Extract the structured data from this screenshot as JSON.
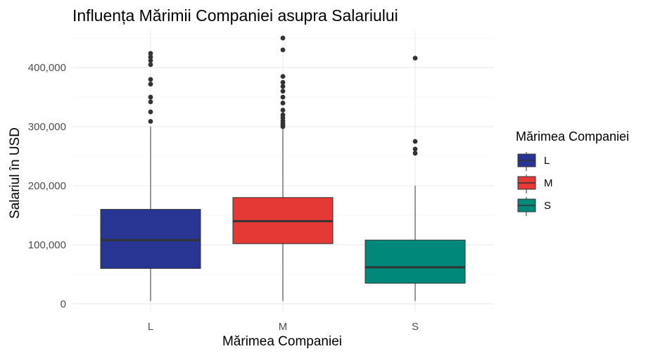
{
  "chart_data": {
    "type": "box",
    "title": "Influența Mărimii Companiei asupra Salariului",
    "xlabel": "Mărimea Companiei",
    "ylabel": "Salariul în USD",
    "ylim": [
      -12000,
      462000
    ],
    "yticks": [
      0,
      100000,
      200000,
      300000,
      400000
    ],
    "ytick_labels": [
      "0",
      "100,000",
      "200,000",
      "300,000",
      "400,000"
    ],
    "categories": [
      "L",
      "M",
      "S"
    ],
    "colors": {
      "L": "#283593",
      "M": "#e53935",
      "S": "#00897b"
    },
    "legend": {
      "title": "Mărimea Companiei",
      "position": "right",
      "labels": [
        "L",
        "M",
        "S"
      ]
    },
    "grid": true,
    "boxes": [
      {
        "category": "L",
        "whisker_low": 5000,
        "q1": 60000,
        "median": 108000,
        "q3": 160000,
        "whisker_high": 300000,
        "outliers": [
          309000,
          325000,
          342000,
          350000,
          372000,
          380000,
          405000,
          412000,
          418000,
          424000
        ]
      },
      {
        "category": "M",
        "whisker_low": 5000,
        "q1": 102000,
        "median": 140000,
        "q3": 180000,
        "whisker_high": 297000,
        "outliers": [
          300000,
          303000,
          306000,
          310000,
          315000,
          320000,
          328000,
          340000,
          350000,
          360000,
          368000,
          375000,
          385000,
          430000,
          450000
        ]
      },
      {
        "category": "S",
        "whisker_low": 5000,
        "q1": 35000,
        "median": 62000,
        "q3": 108000,
        "whisker_high": 200000,
        "outliers": [
          255000,
          262000,
          275000,
          416000
        ]
      }
    ]
  }
}
